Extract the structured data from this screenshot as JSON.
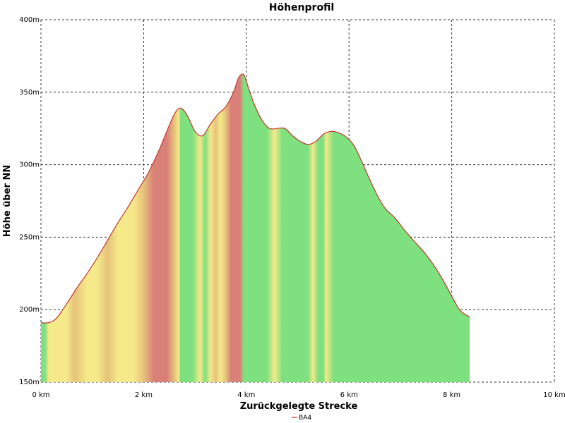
{
  "chart_data": {
    "type": "area",
    "title": "Höhenprofil",
    "xlabel": "Zurückgelegte Strecke",
    "ylabel": "Höhe über NN",
    "xlim": [
      0,
      10
    ],
    "ylim": [
      150,
      400
    ],
    "x_ticks": [
      0,
      2,
      4,
      6,
      8,
      10
    ],
    "x_tick_labels": [
      "0 km",
      "2 km",
      "4 km",
      "6 km",
      "8 km",
      "10 km"
    ],
    "y_ticks": [
      150,
      200,
      250,
      300,
      350,
      400
    ],
    "y_tick_labels": [
      "150m",
      "200m",
      "250m",
      "300m",
      "350m",
      "400m"
    ],
    "grid": true,
    "legend_position": "bottom-center",
    "colors": {
      "line": "#c0392b",
      "grade_green": "#7fe07f",
      "grade_yellow": "#f5e98a",
      "grade_orange": "#e6c27a",
      "grade_red": "#d98078",
      "grid": "#333333"
    },
    "series": [
      {
        "name": "BA4",
        "x": [
          0,
          0.15,
          0.3,
          0.5,
          0.7,
          0.9,
          1.1,
          1.3,
          1.5,
          1.7,
          1.9,
          2.1,
          2.3,
          2.45,
          2.6,
          2.72,
          2.85,
          3.0,
          3.15,
          3.3,
          3.45,
          3.6,
          3.75,
          3.85,
          3.95,
          4.05,
          4.15,
          4.3,
          4.45,
          4.6,
          4.75,
          4.9,
          5.05,
          5.2,
          5.35,
          5.5,
          5.65,
          5.8,
          5.95,
          6.1,
          6.25,
          6.4,
          6.55,
          6.7,
          6.9,
          7.1,
          7.3,
          7.5,
          7.7,
          7.9,
          8.05,
          8.15,
          8.25,
          8.35
        ],
        "y": [
          191,
          191,
          194,
          204,
          215,
          225,
          236,
          248,
          260,
          271,
          283,
          295,
          310,
          323,
          335,
          339,
          334,
          323,
          320,
          328,
          335,
          340,
          350,
          360,
          362,
          352,
          342,
          331,
          325,
          325,
          325,
          320,
          316,
          314,
          316,
          321,
          323,
          322,
          319,
          313,
          302,
          290,
          279,
          270,
          263,
          254,
          246,
          238,
          228,
          216,
          206,
          200,
          197,
          195
        ]
      }
    ],
    "gradient_bands": [
      {
        "x": 0.0,
        "grade": "green"
      },
      {
        "x": 0.08,
        "grade": "green"
      },
      {
        "x": 0.15,
        "grade": "yellow"
      },
      {
        "x": 0.5,
        "grade": "yellow"
      },
      {
        "x": 0.65,
        "grade": "orange"
      },
      {
        "x": 0.9,
        "grade": "yellow"
      },
      {
        "x": 1.1,
        "grade": "yellow"
      },
      {
        "x": 1.3,
        "grade": "orange"
      },
      {
        "x": 1.5,
        "grade": "yellow"
      },
      {
        "x": 1.8,
        "grade": "yellow"
      },
      {
        "x": 2.0,
        "grade": "orange"
      },
      {
        "x": 2.2,
        "grade": "red"
      },
      {
        "x": 2.45,
        "grade": "red"
      },
      {
        "x": 2.6,
        "grade": "orange"
      },
      {
        "x": 2.68,
        "grade": "yellow"
      },
      {
        "x": 2.72,
        "grade": "green"
      },
      {
        "x": 2.95,
        "grade": "green"
      },
      {
        "x": 3.1,
        "grade": "yellow"
      },
      {
        "x": 3.2,
        "grade": "green"
      },
      {
        "x": 3.3,
        "grade": "yellow"
      },
      {
        "x": 3.4,
        "grade": "orange"
      },
      {
        "x": 3.5,
        "grade": "yellow"
      },
      {
        "x": 3.6,
        "grade": "orange"
      },
      {
        "x": 3.7,
        "grade": "red"
      },
      {
        "x": 3.88,
        "grade": "red"
      },
      {
        "x": 3.95,
        "grade": "green"
      },
      {
        "x": 4.4,
        "grade": "green"
      },
      {
        "x": 4.55,
        "grade": "yellow"
      },
      {
        "x": 4.7,
        "grade": "green"
      },
      {
        "x": 5.2,
        "grade": "green"
      },
      {
        "x": 5.3,
        "grade": "yellow"
      },
      {
        "x": 5.4,
        "grade": "green"
      },
      {
        "x": 5.5,
        "grade": "green"
      },
      {
        "x": 5.55,
        "grade": "yellow"
      },
      {
        "x": 5.7,
        "grade": "green"
      },
      {
        "x": 8.35,
        "grade": "green"
      }
    ]
  }
}
